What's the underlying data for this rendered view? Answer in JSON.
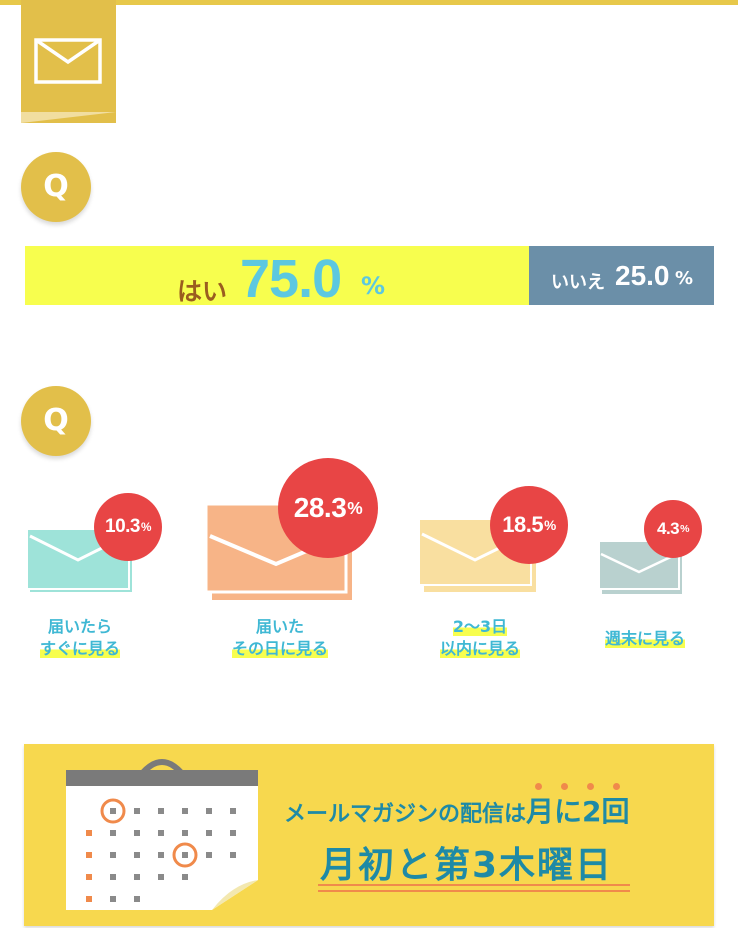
{
  "colors": {
    "accent_gold": "#e2bf4a",
    "yes_bar": "#f7fe4e",
    "no_bar": "#6b8fa8",
    "percent_text": "#5cc8e0",
    "red_badge": "#e84545",
    "caption": "#3fb8d4",
    "banner_bg": "#f7d84e",
    "banner_text": "#1e8aa6",
    "banner_accent": "#f08a4b"
  },
  "header": {
    "icon": "mail-icon"
  },
  "q1": {
    "badge": "Q",
    "yes_label": "はい",
    "yes_value": "75.0",
    "yes_unit": "%",
    "no_label": "いいえ",
    "no_value": "25.0",
    "no_unit": "%",
    "yes_fraction": 0.75,
    "no_fraction": 0.25
  },
  "q2": {
    "badge": "Q",
    "items": [
      {
        "value": "10.3",
        "unit": "%",
        "line1": "届いたら",
        "line2": "すぐに見る",
        "color": "#9ee3d9"
      },
      {
        "value": "28.3",
        "unit": "%",
        "line1": "届いた",
        "line2": "その日に見る",
        "color": "#f7b487"
      },
      {
        "value": "18.5",
        "unit": "%",
        "line1": "2〜3日",
        "line2": "以内に見る",
        "color": "#f9dfa0"
      },
      {
        "value": "4.3",
        "unit": "%",
        "line1": "週末に見る",
        "line2": "",
        "color": "#b9d1cf"
      }
    ]
  },
  "banner": {
    "line1_a": "メールマガジンの配信は",
    "line1_b": "月に2回",
    "line2": "月初と第3木曜日",
    "icon": "calendar-icon"
  }
}
